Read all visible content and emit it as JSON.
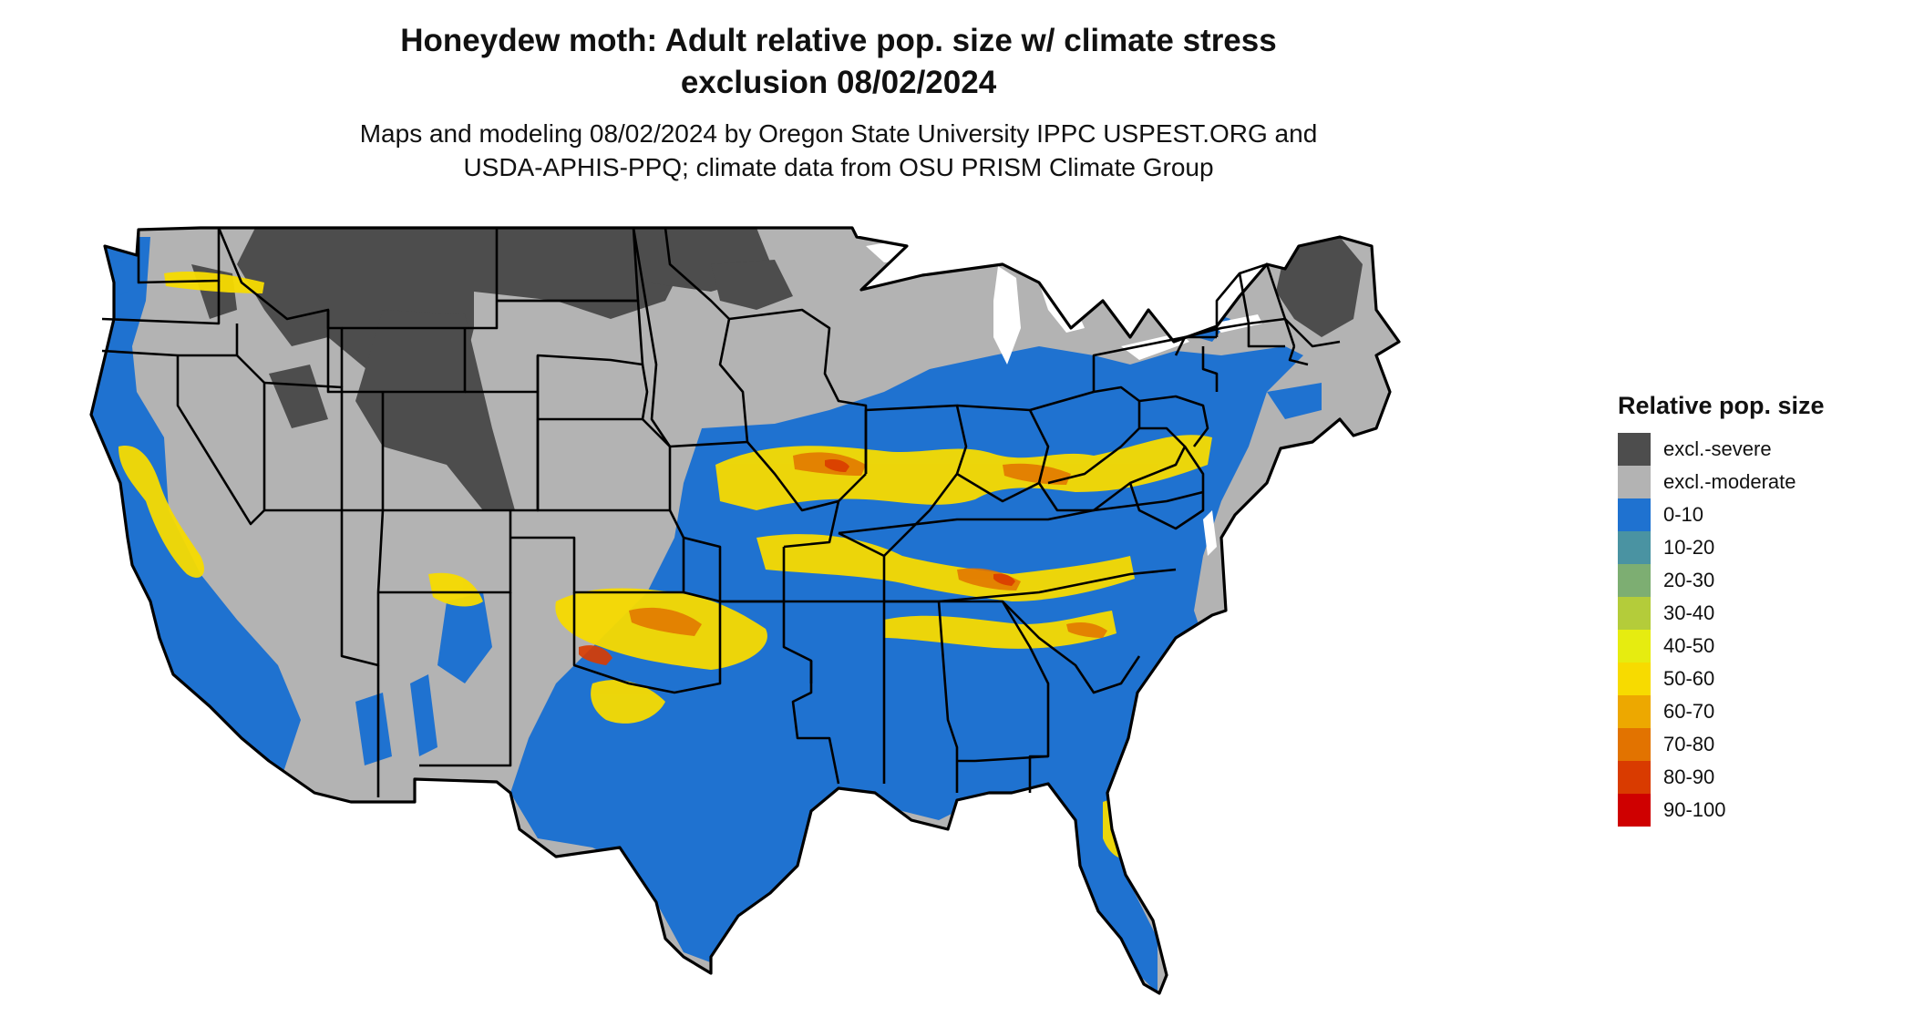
{
  "title": {
    "line1": "Honeydew moth: Adult relative pop. size w/ climate stress",
    "line2": "exclusion 08/02/2024"
  },
  "subtitle": {
    "line1": "Maps and modeling 08/02/2024 by Oregon State University IPPC USPEST.ORG and",
    "line2": "USDA-APHIS-PPQ; climate data from OSU PRISM Climate Group"
  },
  "legend": {
    "title": "Relative pop. size",
    "items": [
      {
        "label": "excl.-severe",
        "color": "#4d4d4d"
      },
      {
        "label": "excl.-moderate",
        "color": "#b3b3b3"
      },
      {
        "label": "0-10",
        "color": "#1f72d0"
      },
      {
        "label": "10-20",
        "color": "#4a93a2"
      },
      {
        "label": "20-30",
        "color": "#7dae72"
      },
      {
        "label": "30-40",
        "color": "#b4cc3a"
      },
      {
        "label": "40-50",
        "color": "#e6ec10"
      },
      {
        "label": "50-60",
        "color": "#f7db00"
      },
      {
        "label": "60-70",
        "color": "#eda800"
      },
      {
        "label": "70-80",
        "color": "#e27300"
      },
      {
        "label": "80-90",
        "color": "#d93b00"
      },
      {
        "label": "90-100",
        "color": "#cf0000"
      }
    ]
  },
  "map": {
    "region": "Contiguous United States",
    "boundary_color": "#000000",
    "water_color": "#ffffff"
  }
}
